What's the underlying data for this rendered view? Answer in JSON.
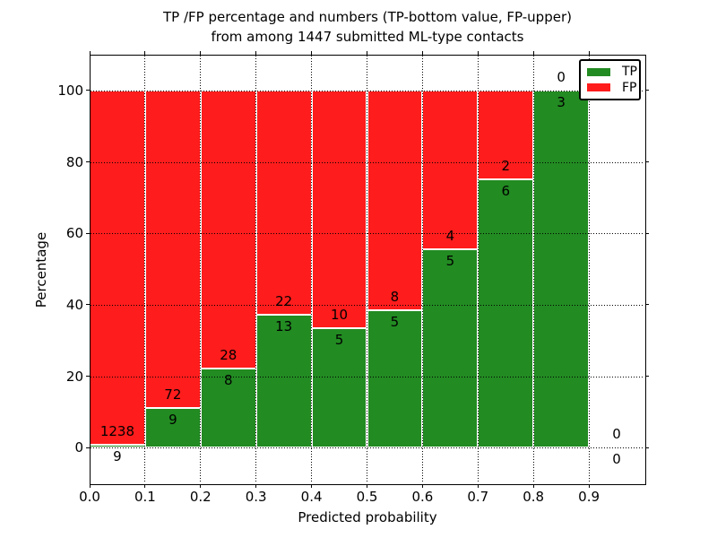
{
  "figure": {
    "title_line1": "TP /FP percentage and numbers (TP-bottom value, FP-upper)",
    "title_line2": "from among 1447 submitted ML-type contacts"
  },
  "chart_data": {
    "type": "bar",
    "stacked": true,
    "title": "TP /FP percentage and numbers (TP-bottom value, FP-upper) from among 1447 submitted ML-type contacts",
    "xlabel": "Predicted probability",
    "ylabel": "Percentage",
    "xlim": [
      0.0,
      1.0
    ],
    "ylim": [
      -10,
      110
    ],
    "grid": "dotted",
    "legend_position": "upper right",
    "total_contacts": 1447,
    "bin_width": 0.1,
    "xticks": [
      "0.0",
      "0.1",
      "0.2",
      "0.3",
      "0.4",
      "0.5",
      "0.6",
      "0.7",
      "0.8",
      "0.9"
    ],
    "yticks": [
      0,
      20,
      40,
      60,
      80,
      100
    ],
    "series": [
      {
        "name": "TP",
        "color": "#228B22"
      },
      {
        "name": "FP",
        "color": "#FF1C1C"
      }
    ],
    "bins": [
      {
        "x0": 0.0,
        "x1": 0.1,
        "tp": 9,
        "fp": 1238,
        "tp_pct": 0.72,
        "fp_pct": 99.28
      },
      {
        "x0": 0.1,
        "x1": 0.2,
        "tp": 9,
        "fp": 72,
        "tp_pct": 11.11,
        "fp_pct": 88.89
      },
      {
        "x0": 0.2,
        "x1": 0.3,
        "tp": 8,
        "fp": 28,
        "tp_pct": 22.22,
        "fp_pct": 77.78
      },
      {
        "x0": 0.3,
        "x1": 0.4,
        "tp": 13,
        "fp": 22,
        "tp_pct": 37.14,
        "fp_pct": 62.86
      },
      {
        "x0": 0.4,
        "x1": 0.5,
        "tp": 5,
        "fp": 10,
        "tp_pct": 33.33,
        "fp_pct": 66.67
      },
      {
        "x0": 0.5,
        "x1": 0.6,
        "tp": 5,
        "fp": 8,
        "tp_pct": 38.46,
        "fp_pct": 61.54
      },
      {
        "x0": 0.6,
        "x1": 0.7,
        "tp": 5,
        "fp": 4,
        "tp_pct": 55.56,
        "fp_pct": 44.44
      },
      {
        "x0": 0.7,
        "x1": 0.8,
        "tp": 6,
        "fp": 2,
        "tp_pct": 75.0,
        "fp_pct": 25.0
      },
      {
        "x0": 0.8,
        "x1": 0.9,
        "tp": 3,
        "fp": 0,
        "tp_pct": 100.0,
        "fp_pct": 0.0
      },
      {
        "x0": 0.9,
        "x1": 1.0,
        "tp": 0,
        "fp": 0,
        "tp_pct": null,
        "fp_pct": null
      }
    ]
  },
  "legend": {
    "entries": [
      {
        "label": "TP",
        "color": "#228B22"
      },
      {
        "label": "FP",
        "color": "#FF1C1C"
      }
    ]
  },
  "axes": {
    "xlabel": "Predicted probability",
    "ylabel": "Percentage"
  }
}
